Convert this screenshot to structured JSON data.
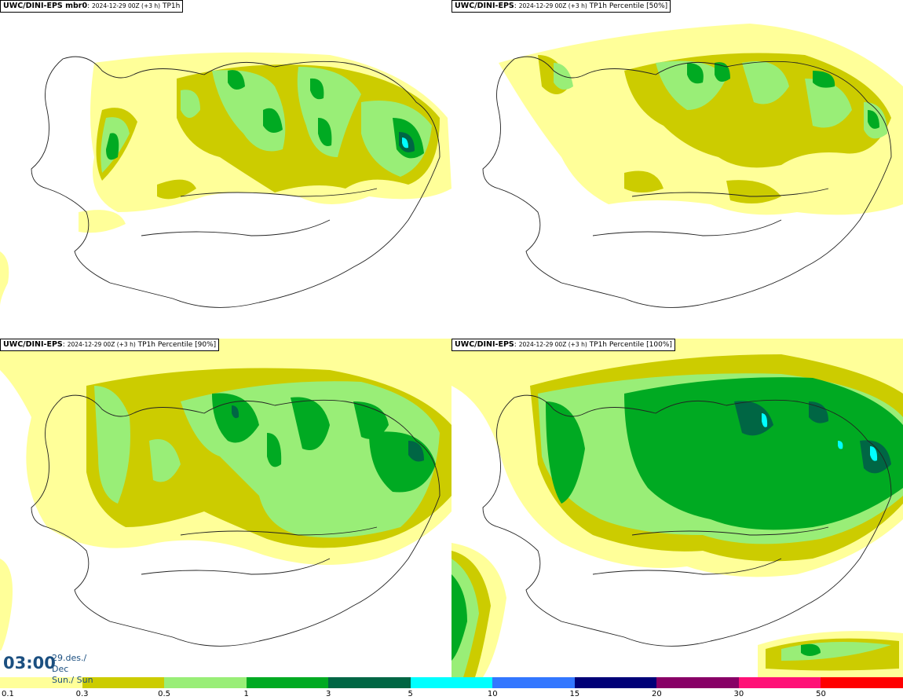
{
  "panels": [
    {
      "id": "p1",
      "title_main": "UWC/DINI-EPS mbr0",
      "title_run": "2024-12-29 00Z (+3 h)",
      "title_var": "TP1h"
    },
    {
      "id": "p2",
      "title_main": "UWC/DINI-EPS",
      "title_run": "2024-12-29 00Z (+3 h)",
      "title_var": "TP1h Percentile [50%]"
    },
    {
      "id": "p3",
      "title_main": "UWC/DINI-EPS",
      "title_run": "2024-12-29 00Z (+3 h)",
      "title_var": "TP1h Percentile [90%]"
    },
    {
      "id": "p4",
      "title_main": "UWC/DINI-EPS",
      "title_run": "2024-12-29 00Z (+3 h)",
      "title_var": "TP1h Percentile [100%]"
    }
  ],
  "time": {
    "value": "03:00",
    "date_line1": "29.des./ Dec",
    "date_line2": "Sun./ Sun"
  },
  "legend": {
    "ticks": [
      "0.1",
      "0.3",
      "0.5",
      "1",
      "3",
      "5",
      "10",
      "15",
      "20",
      "30",
      "50"
    ],
    "colors": [
      "#ffff99",
      "#cccc00",
      "#99ee77",
      "#00aa22",
      "#006644",
      "#00ffff",
      "#3377ff",
      "#000077",
      "#880066",
      "#ff1177",
      "#ff0000"
    ]
  },
  "colors": {
    "title_text": "#1b4f80",
    "coast": "#222222"
  }
}
